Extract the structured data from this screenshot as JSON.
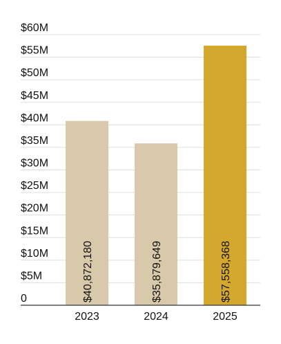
{
  "chart_data": {
    "type": "bar",
    "categories": [
      "2023",
      "2024",
      "2025"
    ],
    "values": [
      40872180,
      35879649,
      57558368
    ],
    "data_labels": [
      "$40,872,180",
      "$35,879,649",
      "$57,558,368"
    ],
    "ylim": [
      0,
      60000000
    ],
    "yticks": [
      0,
      5000000,
      10000000,
      15000000,
      20000000,
      25000000,
      30000000,
      35000000,
      40000000,
      45000000,
      50000000,
      55000000,
      60000000
    ],
    "ytick_labels": [
      "0",
      "$5M",
      "$10M",
      "$15M",
      "$20M",
      "$25M",
      "$30M",
      "$35M",
      "$40M",
      "$45M",
      "$50M",
      "$55M",
      "$60M"
    ],
    "colors": [
      "#d9c9ab",
      "#d9c9ab",
      "#d4a82c"
    ],
    "grid": true,
    "title": "",
    "xlabel": "",
    "ylabel": ""
  }
}
